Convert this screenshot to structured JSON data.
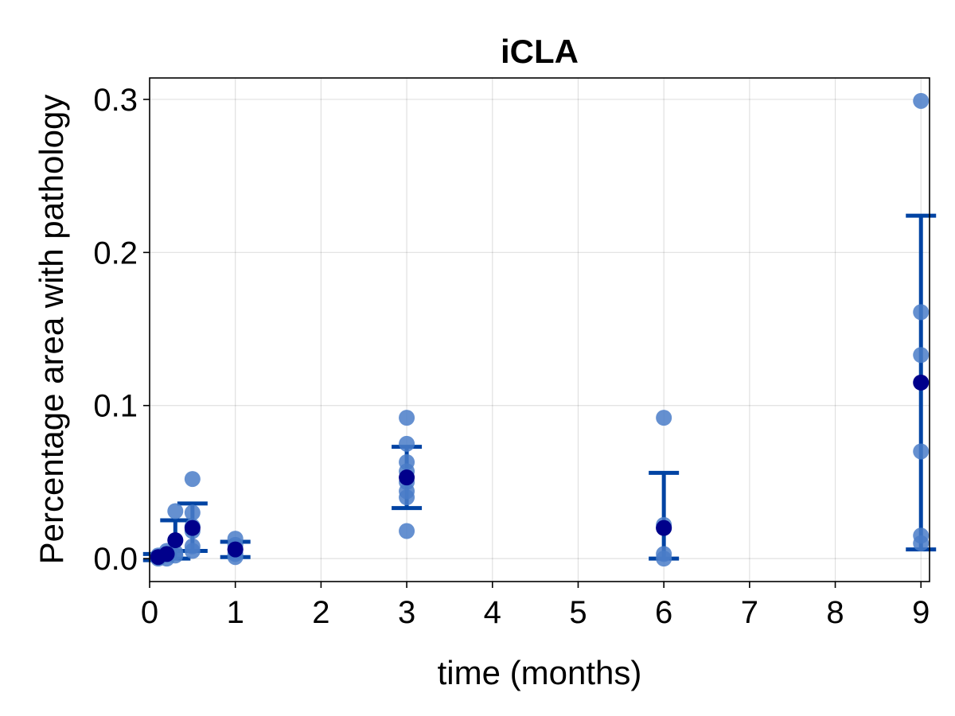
{
  "chart_data": {
    "type": "scatter",
    "title": "iCLA",
    "xlabel": "time (months)",
    "ylabel": "Percentage area with pathology",
    "xlim": [
      0,
      9.1
    ],
    "ylim": [
      -0.015,
      0.314
    ],
    "xticks": [
      0,
      1,
      2,
      3,
      4,
      5,
      6,
      7,
      8,
      9
    ],
    "yticks": [
      0.0,
      0.1,
      0.2,
      0.3
    ],
    "xtick_labels": [
      "0",
      "1",
      "2",
      "3",
      "4",
      "5",
      "6",
      "7",
      "8",
      "9"
    ],
    "ytick_labels": [
      "0.0",
      "0.1",
      "0.2",
      "0.3"
    ],
    "grid": true,
    "colors": {
      "points": "#4a7cc8",
      "mean": "#00008b",
      "errorbar": "#0043a3"
    },
    "series": [
      {
        "points": [
          [
            0.1,
            0.0
          ],
          [
            0.1,
            0.001
          ],
          [
            0.1,
            0.002
          ],
          [
            0.2,
            0.0
          ],
          [
            0.2,
            0.003
          ],
          [
            0.2,
            0.005
          ],
          [
            0.3,
            0.002
          ],
          [
            0.3,
            0.004
          ],
          [
            0.3,
            0.012
          ],
          [
            0.3,
            0.031
          ],
          [
            0.5,
            0.005
          ],
          [
            0.5,
            0.008
          ],
          [
            0.5,
            0.018
          ],
          [
            0.5,
            0.021
          ],
          [
            0.5,
            0.03
          ],
          [
            0.5,
            0.052
          ],
          [
            1,
            0.001
          ],
          [
            1,
            0.003
          ],
          [
            1,
            0.006
          ],
          [
            1,
            0.009
          ],
          [
            1,
            0.013
          ],
          [
            3,
            0.018
          ],
          [
            3,
            0.04
          ],
          [
            3,
            0.044
          ],
          [
            3,
            0.05
          ],
          [
            3,
            0.057
          ],
          [
            3,
            0.063
          ],
          [
            3,
            0.075
          ],
          [
            3,
            0.092
          ],
          [
            6,
            0.0
          ],
          [
            6,
            0.003
          ],
          [
            6,
            0.02
          ],
          [
            6,
            0.022
          ],
          [
            6,
            0.092
          ],
          [
            9,
            0.01
          ],
          [
            9,
            0.015
          ],
          [
            9,
            0.07
          ],
          [
            9,
            0.133
          ],
          [
            9,
            0.161
          ],
          [
            9,
            0.299
          ]
        ]
      },
      {
        "points": [
          [
            0.1,
            0.001
          ],
          [
            0.2,
            0.003
          ],
          [
            0.3,
            0.012
          ],
          [
            0.5,
            0.02
          ],
          [
            1,
            0.006
          ],
          [
            3,
            0.053
          ],
          [
            6,
            0.02
          ],
          [
            9,
            0.115
          ]
        ]
      }
    ],
    "error_bars": [
      {
        "x": 0.1,
        "low": -0.001,
        "high": 0.003
      },
      {
        "x": 0.3,
        "low": 0.0,
        "high": 0.025
      },
      {
        "x": 0.5,
        "low": 0.005,
        "high": 0.036
      },
      {
        "x": 1,
        "low": 0.001,
        "high": 0.011
      },
      {
        "x": 3,
        "low": 0.033,
        "high": 0.073
      },
      {
        "x": 6,
        "low": 0.0,
        "high": 0.056
      },
      {
        "x": 9,
        "low": 0.006,
        "high": 0.224
      }
    ]
  }
}
